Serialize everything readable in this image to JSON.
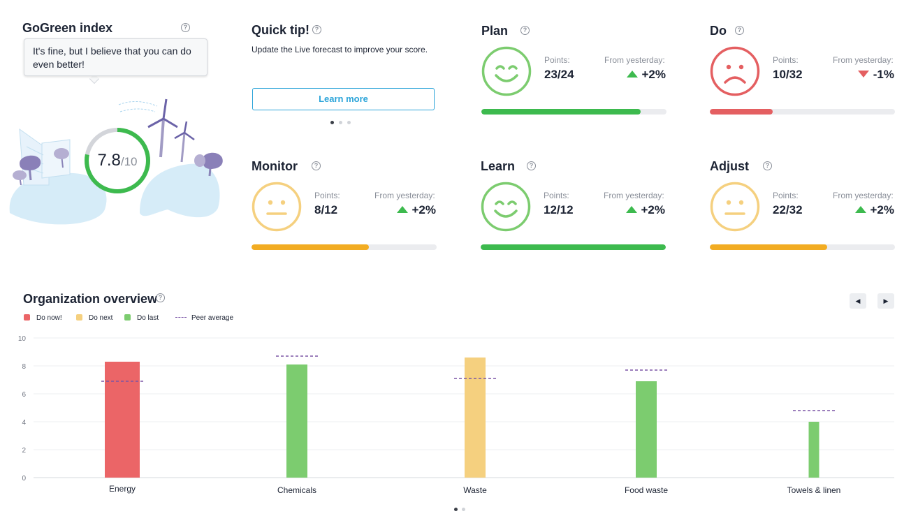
{
  "gogreen": {
    "title": "GoGreen index",
    "tooltip": "It's fine, but I believe  that you can do even better!",
    "score": "7.8",
    "score_max": "/10",
    "score_fraction": 0.78,
    "ring_color": "#3dba4e"
  },
  "quick_tip": {
    "title": "Quick tip!",
    "text": "Update the Live forecast to improve your score.",
    "button": "Learn more",
    "carousel_page": 1,
    "carousel_total": 3
  },
  "metrics": {
    "labels": {
      "points": "Points:",
      "from": "From  yesterday:"
    },
    "plan": {
      "title": "Plan",
      "mood": "happy",
      "points": "23/24",
      "delta": "+2%",
      "direction": "up",
      "progress": 0.86,
      "color": "#3dba4e"
    },
    "do": {
      "title": "Do",
      "mood": "sad",
      "points": "10/32",
      "delta": "-1%",
      "direction": "down",
      "progress": 0.34,
      "color": "#e45f61"
    },
    "monitor": {
      "title": "Monitor",
      "mood": "neutral",
      "points": "8/12",
      "delta": "+2%",
      "direction": "up",
      "progress": 0.635,
      "color": "#f2ac22"
    },
    "learn": {
      "title": "Learn",
      "mood": "happy",
      "points": "12/12",
      "delta": "+2%",
      "direction": "up",
      "progress": 1.0,
      "color": "#3dba4e"
    },
    "adjust": {
      "title": "Adjust",
      "mood": "neutral",
      "points": "22/32",
      "delta": "+2%",
      "direction": "up",
      "progress": 0.635,
      "color": "#f2ac22"
    }
  },
  "colors": {
    "happy": "#7ccc6f",
    "sad": "#e45f61",
    "neutral": "#f5d07f",
    "peer": "#7b55a6"
  },
  "overview": {
    "title": "Organization overview",
    "prev_icon": "◀",
    "next_icon": "▶",
    "legend": {
      "do_now": "Do now!",
      "do_next": "Do next",
      "do_last": "Do last",
      "peer": "Peer average"
    },
    "pager_page": 1,
    "pager_total": 2
  },
  "chart_data": {
    "type": "bar",
    "title": "Organization overview",
    "categories": [
      "Energy",
      "Chemicals",
      "Waste",
      "Food waste",
      "Towels & linen"
    ],
    "values": [
      8.3,
      8.1,
      8.6,
      6.9,
      4.0
    ],
    "priority": [
      "Do now!",
      "Do last",
      "Do next",
      "Do last",
      "Do last"
    ],
    "bar_colors": [
      "#eb6567",
      "#7ccc6f",
      "#f5d07f",
      "#7ccc6f",
      "#7ccc6f"
    ],
    "peer_average": [
      6.9,
      8.7,
      7.1,
      7.7,
      4.8
    ],
    "ylim": [
      0,
      10
    ],
    "yticks": [
      0,
      2,
      4,
      6,
      8,
      10
    ],
    "grid": true,
    "legend": "top-left"
  }
}
